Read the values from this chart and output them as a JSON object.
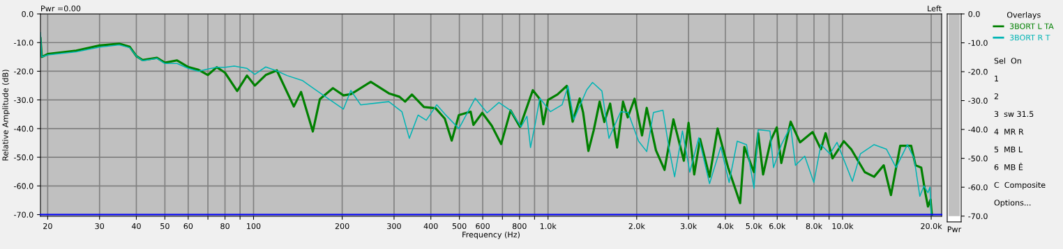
{
  "chart_data": [
    {
      "type": "line",
      "xlabel": "Frequency (Hz)",
      "ylabel": "Relative Amplitude (dB)",
      "log": "x",
      "grid": true,
      "legend": "right",
      "legend_title": "Overlays",
      "line_style": "solid",
      "marker": "none",
      "annotations": [
        "Pwr =0.00",
        "Left"
      ],
      "xlim": [
        18.9,
        21700
      ],
      "ylim": [
        -70.6,
        0
      ],
      "xticks": [
        20,
        30,
        40,
        50,
        60,
        {
          "value": 70,
          "label": null
        },
        80,
        {
          "value": 90,
          "label": null
        },
        100,
        200,
        300,
        400,
        500,
        600,
        {
          "value": 700,
          "label": null
        },
        800,
        {
          "value": 900,
          "label": null
        },
        {
          "value": 1000,
          "label": "1.0k"
        },
        {
          "value": 2000,
          "label": "2.0k"
        },
        {
          "value": 3000,
          "label": "3.0k"
        },
        {
          "value": 4000,
          "label": "4.0k"
        },
        {
          "value": 5000,
          "label": "5.0k"
        },
        {
          "value": 6000,
          "label": "6.0k"
        },
        {
          "value": 7000,
          "label": null
        },
        {
          "value": 8000,
          "label": "8.0k"
        },
        {
          "value": 9000,
          "label": null
        },
        {
          "value": 10000,
          "label": "10.0k"
        },
        {
          "value": 20000,
          "label": "20.0k"
        }
      ],
      "yticks": [
        {
          "value": 0,
          "label": "0.0"
        },
        {
          "value": -10,
          "label": "-10.0"
        },
        {
          "value": -20,
          "label": "-20.0"
        },
        {
          "value": -30,
          "label": "-30.0"
        },
        {
          "value": -40,
          "label": "-40.0"
        },
        {
          "value": -50,
          "label": "-50.0"
        },
        {
          "value": -60,
          "label": "-60.0"
        },
        {
          "value": -70,
          "label": "-70.0"
        }
      ],
      "ref_lines": [
        {
          "axis": "y",
          "value": -70,
          "label": null,
          "color": "#0000ff"
        }
      ],
      "series": [
        {
          "name": "3BORT L TA",
          "color": "#008000",
          "x": [
            18.9,
            19.1,
            20,
            25,
            30,
            35,
            38,
            40,
            42,
            47,
            50,
            55,
            60,
            65,
            70,
            75,
            80,
            88,
            95,
            101,
            110,
            120,
            137,
            145,
            159,
            168,
            186,
            202,
            214,
            250,
            288,
            313,
            327,
            345,
            379,
            415,
            446,
            471,
            498,
            546,
            558,
            598,
            644,
            693,
            746,
            803,
            888,
            938,
            964,
            1000,
            1076,
            1158,
            1212,
            1281,
            1316,
            1371,
            1429,
            1497,
            1553,
            1625,
            1716,
            1797,
            1865,
            1967,
            2085,
            2163,
            2325,
            2486,
            2665,
            2892,
            3000,
            3136,
            3282,
            3535,
            3765,
            4087,
            4490,
            4641,
            5003,
            5171,
            5373,
            5710,
            5980,
            6195,
            6665,
            7170,
            7917,
            8445,
            8760,
            9250,
            10100,
            10700,
            11900,
            12800,
            13800,
            14600,
            15700,
            17100,
            17700,
            18500,
            19100,
            19500,
            19900,
            20100
          ],
          "values": [
            -8.5,
            -15.0,
            -14.0,
            -12.8,
            -11.0,
            -10.4,
            -11.5,
            -14.7,
            -16.1,
            -15.3,
            -17.0,
            -16.2,
            -18.5,
            -19.5,
            -21.3,
            -18.6,
            -20.5,
            -26.9,
            -21.5,
            -25.0,
            -21.3,
            -19.7,
            -32.3,
            -27.2,
            -41.0,
            -29.7,
            -25.9,
            -28.4,
            -28.0,
            -23.7,
            -27.7,
            -28.9,
            -30.6,
            -28.1,
            -32.5,
            -32.9,
            -36.5,
            -44.2,
            -35.3,
            -34.1,
            -38.7,
            -34.5,
            -39.0,
            -45.4,
            -33.7,
            -39.4,
            -26.6,
            -29.7,
            -38.5,
            -30.0,
            -28.1,
            -25.1,
            -37.6,
            -29.5,
            -34.5,
            -47.8,
            -40.6,
            -30.6,
            -37.7,
            -31.3,
            -46.6,
            -30.6,
            -36.1,
            -29.6,
            -42.4,
            -32.8,
            -47.6,
            -54.4,
            -36.8,
            -51.2,
            -38.0,
            -56.0,
            -43.6,
            -56.8,
            -40.0,
            -53.6,
            -66.0,
            -46.4,
            -55.2,
            -41.6,
            -56.0,
            -44.0,
            -39.6,
            -52.0,
            -37.6,
            -44.8,
            -41.2,
            -47.2,
            -41.6,
            -50.4,
            -44.4,
            -47.2,
            -55.2,
            -56.8,
            -52.8,
            -63.2,
            -46.0,
            -46.0,
            -52.8,
            -53.6,
            -62.4,
            -67.2,
            -64.8,
            -70.0
          ]
        },
        {
          "name": "3BORT R T",
          "color": "#00b4b4",
          "x": [
            18.9,
            19.1,
            20,
            25,
            30,
            35,
            38,
            40,
            42,
            47,
            50,
            55,
            60,
            65,
            70,
            75,
            80,
            86,
            95,
            101,
            110,
            120,
            130,
            147,
            155,
            179,
            202,
            214,
            231,
            288,
            319,
            338,
            362,
            386,
            419,
            446,
            498,
            566,
            621,
            681,
            746,
            810,
            848,
            872,
            904,
            938,
            1018,
            1116,
            1169,
            1223,
            1353,
            1416,
            1524,
            1610,
            1765,
            1870,
            2030,
            2163,
            2280,
            2455,
            2570,
            2690,
            2860,
            3030,
            3250,
            3535,
            3860,
            4120,
            4390,
            4720,
            5003,
            5170,
            5670,
            5830,
            6200,
            6665,
            6920,
            7440,
            7990,
            8445,
            9060,
            9580,
            10800,
            11500,
            12800,
            14100,
            15200,
            16600,
            17500,
            18300,
            18900,
            19500,
            19800,
            20000
          ],
          "values": [
            -6.5,
            -15.0,
            -14.3,
            -13.2,
            -11.6,
            -10.8,
            -11.8,
            -14.7,
            -16.3,
            -15.5,
            -17.3,
            -17.3,
            -19.0,
            -20.0,
            -19.2,
            -18.6,
            -18.6,
            -18.2,
            -19.0,
            -21.1,
            -18.5,
            -19.9,
            -21.5,
            -23.3,
            -25.0,
            -29.5,
            -33.2,
            -26.7,
            -31.7,
            -30.6,
            -34.1,
            -43.4,
            -35.3,
            -37.1,
            -31.7,
            -34.9,
            -40.0,
            -29.4,
            -34.5,
            -30.9,
            -33.7,
            -39.4,
            -35.7,
            -46.6,
            -38.5,
            -29.4,
            -34.1,
            -31.7,
            -25.2,
            -36.9,
            -26.5,
            -23.9,
            -26.9,
            -43.4,
            -34.1,
            -34.4,
            -44.4,
            -48.0,
            -34.4,
            -33.6,
            -46.4,
            -56.8,
            -40.8,
            -55.2,
            -43.2,
            -59.2,
            -46.4,
            -58.8,
            -44.4,
            -45.6,
            -60.8,
            -40.4,
            -40.8,
            -53.6,
            -45.6,
            -39.2,
            -52.8,
            -49.6,
            -58.8,
            -45.6,
            -48.8,
            -44.8,
            -58.4,
            -48.8,
            -45.6,
            -47.2,
            -53.6,
            -45.6,
            -50.4,
            -63.6,
            -60.0,
            -62.4,
            -60.4,
            -69.6
          ]
        }
      ]
    },
    {
      "type": "bar",
      "xlabel": "Pwr",
      "categories": [
        null
      ],
      "values": [
        -70
      ],
      "color": "#c0c0c0",
      "ylim": [
        -72,
        0
      ],
      "yticks": [
        {
          "value": 0,
          "label": "0.0"
        },
        {
          "value": -10,
          "label": "-10.0"
        },
        {
          "value": -20,
          "label": "-20.0"
        },
        {
          "value": -30,
          "label": "-30.0"
        },
        {
          "value": -40,
          "label": "-40.0"
        },
        {
          "value": -50,
          "label": "-50.0"
        },
        {
          "value": -60,
          "label": "-60.0"
        },
        {
          "value": -70,
          "label": "-70.0"
        }
      ]
    },
    {
      "type": "other",
      "annotations": [
        "Sel  On",
        "1",
        "2",
        "3  sw 31.5",
        "4  MR R",
        "5  MB L",
        "6  MB Ê",
        "C  Composite",
        "Options..."
      ]
    }
  ]
}
